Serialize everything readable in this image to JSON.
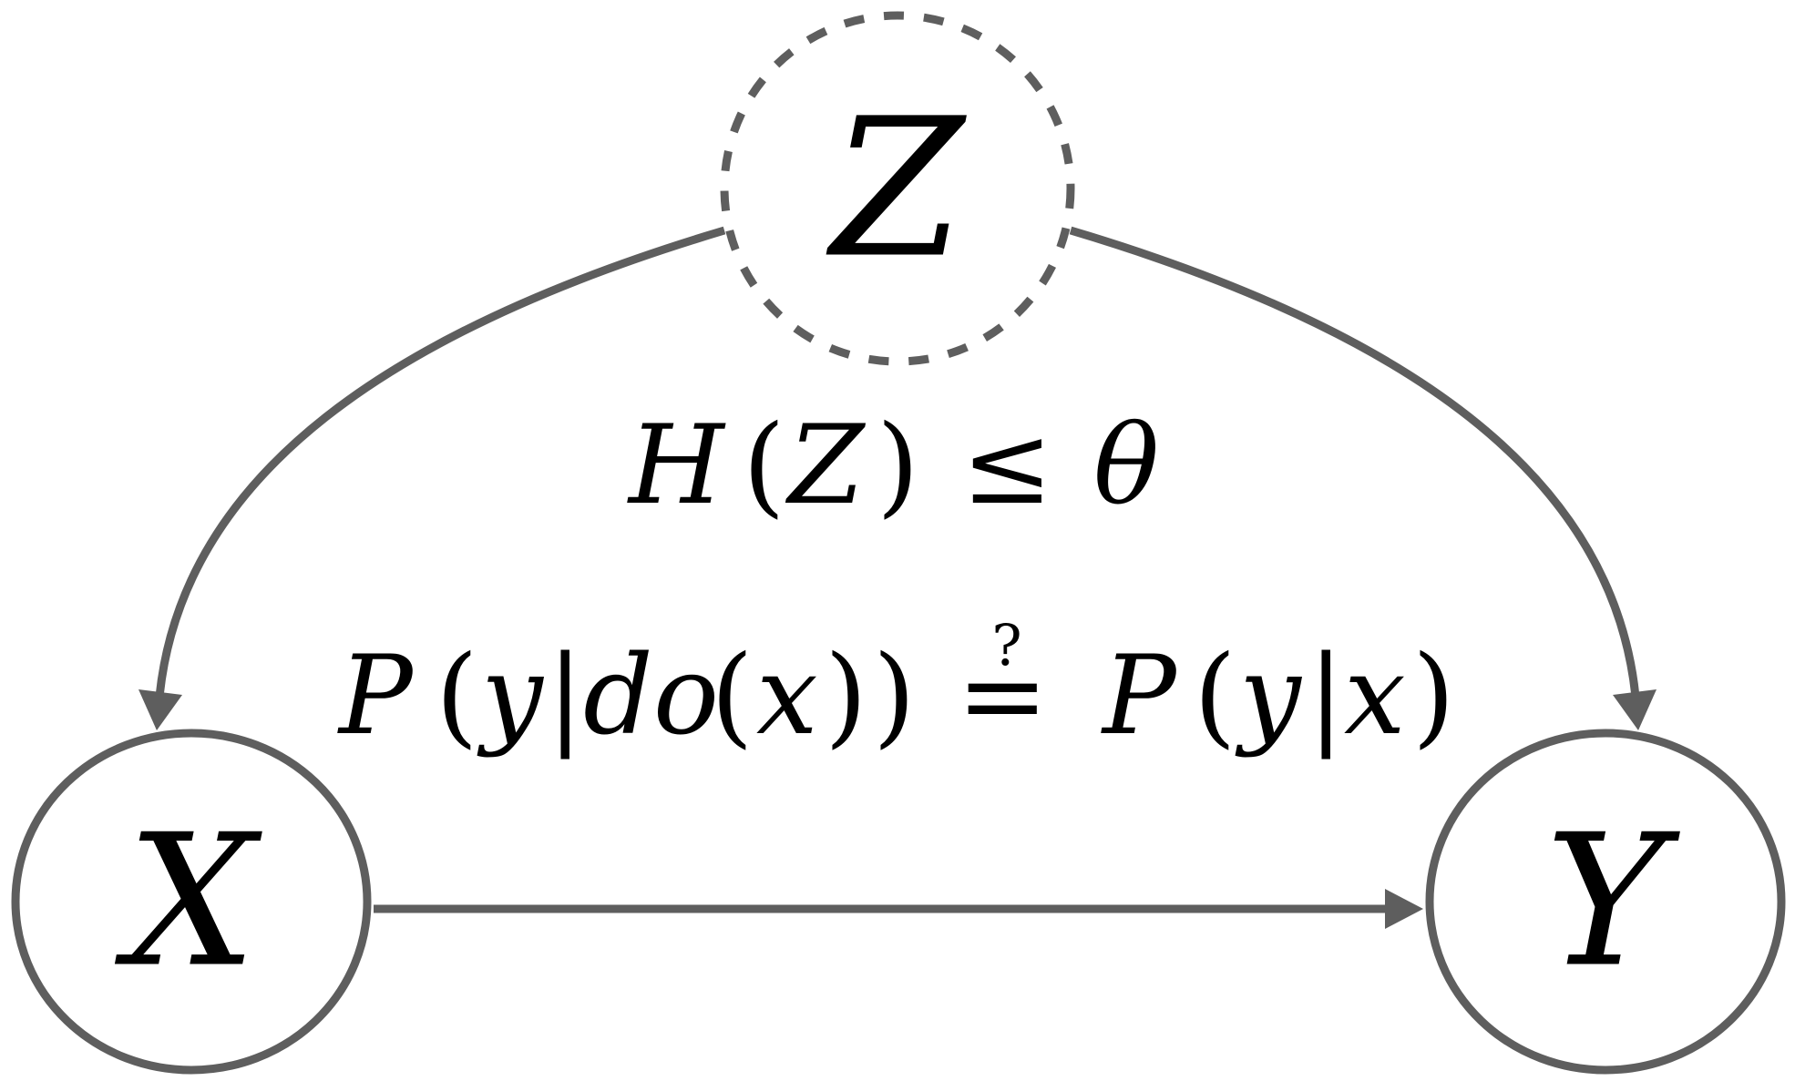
{
  "colors": {
    "edge": "#5e5e5e",
    "text": "#000000",
    "background": "#ffffff"
  },
  "nodes": {
    "z": {
      "label": "Z",
      "style": "dashed"
    },
    "x": {
      "label": "X",
      "style": "solid"
    },
    "y": {
      "label": "Y",
      "style": "solid"
    }
  },
  "edges": [
    {
      "from": "Z",
      "to": "X"
    },
    {
      "from": "Z",
      "to": "Y"
    },
    {
      "from": "X",
      "to": "Y"
    }
  ],
  "annotations": {
    "entropy_constraint": {
      "func": "H",
      "open": "(",
      "arg": "Z",
      "close": ")",
      "relation": "≤",
      "bound": "θ"
    },
    "causal_question": {
      "lhs_p": "P",
      "lhs_open": "(",
      "lhs_y": "y",
      "lhs_bar": "|",
      "lhs_do": "do",
      "lhs_inner_open": "(",
      "lhs_x": "x",
      "lhs_inner_close": ")",
      "lhs_close": ")",
      "question_mark": "?",
      "equals": "=",
      "rhs_p": "P",
      "rhs_open": "(",
      "rhs_y": "y",
      "rhs_bar": "|",
      "rhs_x": "x",
      "rhs_close": ")"
    }
  }
}
